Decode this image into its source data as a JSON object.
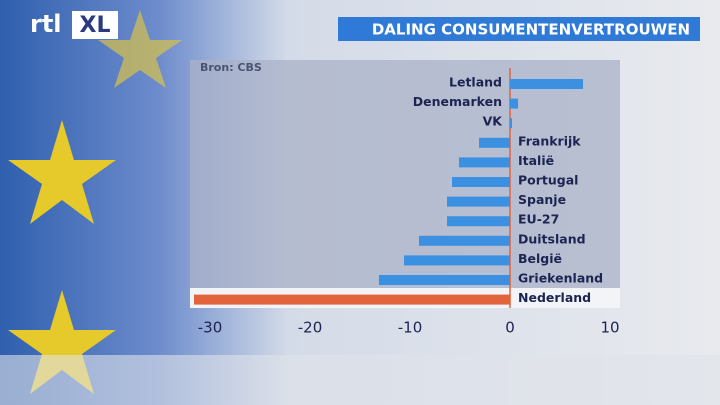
{
  "logo": {
    "left": "rtl",
    "right": "XL"
  },
  "chart_data": {
    "type": "hbar",
    "title": "DALING CONSUMENTENVERTROUWEN",
    "source": "Bron: CBS",
    "categories": [
      "Letland",
      "Denemarken",
      "VK",
      "Frankrijk",
      "Italië",
      "Portugal",
      "Spanje",
      "EU-27",
      "Duitsland",
      "België",
      "Griekenland",
      "Nederland"
    ],
    "values": [
      7.3,
      0.8,
      0.2,
      -3.1,
      -5.1,
      -5.8,
      -6.3,
      -6.3,
      -9.1,
      -10.6,
      -13.1,
      -31.6
    ],
    "colors": [
      "#3c90e2",
      "#3c90e2",
      "#3c90e2",
      "#3c90e2",
      "#3c90e2",
      "#3c90e2",
      "#3c90e2",
      "#3c90e2",
      "#3c90e2",
      "#3c90e2",
      "#3c90e2",
      "#e2643c"
    ],
    "xlim": [
      -32,
      11
    ],
    "xticks": [
      -30,
      -20,
      -10,
      0,
      10
    ]
  }
}
